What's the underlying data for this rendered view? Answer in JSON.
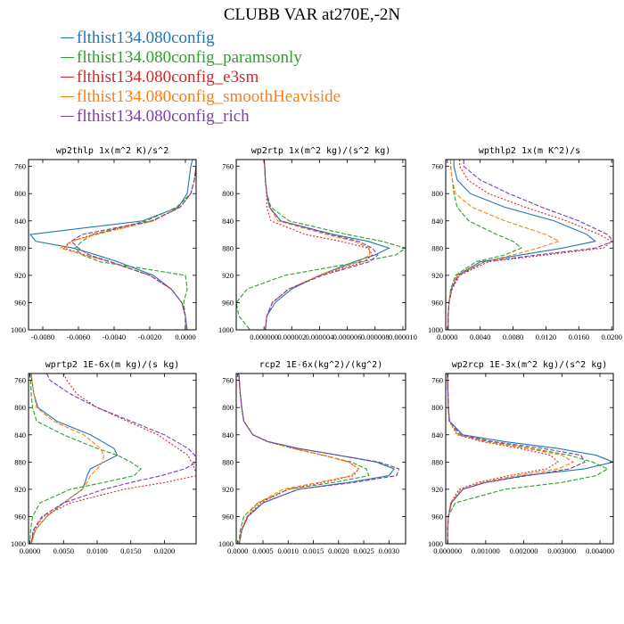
{
  "title": "CLUBB VAR at270E,-2N",
  "legend": [
    {
      "label": "flthist134.080config",
      "color": "#1f77b4"
    },
    {
      "label": "flthist134.080config_paramsonly",
      "color": "#2ca02c"
    },
    {
      "label": "flthist134.080config_e3sm",
      "color": "#d62728"
    },
    {
      "label": "flthist134.080config_smoothHeaviside",
      "color": "#ff7f0e"
    },
    {
      "label": "flthist134.080config_rich",
      "color": "#7f3fa6"
    }
  ],
  "chart_data": [
    {
      "type": "line",
      "title": "wp2thlp  1x(m^2 K)/s^2",
      "ylim": [
        1000,
        750
      ],
      "yticks": [
        "760",
        "800",
        "840",
        "880",
        "920",
        "960",
        "1000"
      ],
      "xlim": [
        -0.0088,
        0.0006
      ],
      "xticks": [
        "-0.0080",
        "-0.0060",
        "-0.0040",
        "-0.0020",
        "0.0000"
      ],
      "y": [
        750,
        760,
        780,
        800,
        820,
        840,
        860,
        870,
        880,
        890,
        900,
        920,
        940,
        960,
        980,
        1000
      ],
      "series": [
        {
          "name": "flthist134.080config",
          "color": "#1f77b4",
          "dash": "",
          "values": [
            0.0004,
            0.0003,
            0.0002,
            0.0001,
            -0.0004,
            -0.0024,
            -0.0087,
            -0.0084,
            -0.0063,
            -0.005,
            -0.0038,
            -0.0018,
            -0.0008,
            -0.0002,
            0.0,
            0.0001
          ]
        },
        {
          "name": "flthist134.080config_paramsonly",
          "color": "#2ca02c",
          "dash": "5,2",
          "values": [
            0.0006,
            0.0006,
            0.0005,
            0.0003,
            -0.0005,
            -0.0022,
            -0.0052,
            -0.0058,
            -0.0062,
            -0.0058,
            -0.0048,
            0.0,
            0.0001,
            -0.0001,
            0.0,
            0.0
          ]
        },
        {
          "name": "flthist134.080config_e3sm",
          "color": "#d62728",
          "dash": "2,2",
          "values": [
            0.0006,
            0.0006,
            0.0005,
            0.0003,
            -0.0003,
            -0.0018,
            -0.0052,
            -0.0064,
            -0.0068,
            -0.0056,
            -0.0042,
            -0.002,
            -0.0008,
            -0.0002,
            0.0,
            0.0
          ]
        },
        {
          "name": "flthist134.080config_smoothHeaviside",
          "color": "#ff7f0e",
          "dash": "5,2",
          "values": [
            0.0006,
            0.0006,
            0.0005,
            0.0003,
            -0.0003,
            -0.0018,
            -0.005,
            -0.0064,
            -0.007,
            -0.0057,
            -0.0043,
            -0.002,
            -0.0008,
            -0.0002,
            0.0,
            0.0
          ]
        },
        {
          "name": "flthist134.080config_rich",
          "color": "#7f3fa6",
          "dash": "5,2",
          "values": [
            0.0006,
            0.0006,
            0.0005,
            0.0003,
            -0.0003,
            -0.0019,
            -0.0058,
            -0.0064,
            -0.006,
            -0.0054,
            -0.0042,
            -0.002,
            -0.0008,
            -0.0002,
            0.0,
            0.0
          ]
        }
      ]
    },
    {
      "type": "line",
      "title": "wp2rtp  1x(m^2 kg)/(s^2 kg)",
      "ylim": [
        1000,
        750
      ],
      "yticks": [
        "760",
        "800",
        "840",
        "880",
        "920",
        "960",
        "1000"
      ],
      "xlim": [
        -2e-06,
        1.02e-05
      ],
      "xticks": [
        "0.000000",
        "0.000002",
        "0.000004",
        "0.000006",
        "0.000008",
        "0.000010"
      ],
      "y": [
        750,
        760,
        780,
        800,
        820,
        840,
        860,
        870,
        880,
        890,
        900,
        920,
        940,
        960,
        980,
        1000
      ],
      "series": [
        {
          "name": "flthist134.080config",
          "color": "#1f77b4",
          "dash": "",
          "values": [
            0,
            5e-08,
            1e-07,
            2e-07,
            4e-07,
            1.2e-06,
            5e-06,
            7.5e-06,
            9e-06,
            8e-06,
            6.5e-06,
            4e-06,
            2e-06,
            8e-07,
            2e-07,
            1e-07
          ]
        },
        {
          "name": "flthist134.080config_paramsonly",
          "color": "#2ca02c",
          "dash": "5,2",
          "values": [
            0,
            5e-08,
            1e-07,
            2e-07,
            5e-07,
            1.8e-06,
            6e-06,
            8.5e-06,
            1.02e-05,
            9.5e-06,
            7e-06,
            1.5e-06,
            -1.2e-06,
            -2e-06,
            -1.8e-06,
            -1e-06
          ]
        },
        {
          "name": "flthist134.080config_e3sm",
          "color": "#d62728",
          "dash": "2,2",
          "values": [
            0,
            5e-08,
            1e-07,
            2e-07,
            2e-07,
            5e-07,
            3e-06,
            5.5e-06,
            7.5e-06,
            7.8e-06,
            7.2e-06,
            4e-06,
            1.8e-06,
            6e-07,
            2e-07,
            1e-07
          ]
        },
        {
          "name": "flthist134.080config_smoothHeaviside",
          "color": "#ff7f0e",
          "dash": "5,2",
          "values": [
            0,
            5e-08,
            1e-07,
            2e-07,
            4e-07,
            1e-06,
            4.5e-06,
            6.5e-06,
            7.6e-06,
            7.6e-06,
            6.8e-06,
            4e-06,
            1.8e-06,
            6e-07,
            2e-07,
            1e-07
          ]
        },
        {
          "name": "flthist134.080config_rich",
          "color": "#7f3fa6",
          "dash": "5,2",
          "values": [
            0,
            5e-08,
            1e-07,
            2e-07,
            4e-07,
            1.2e-06,
            4.8e-06,
            6.8e-06,
            7.8e-06,
            8.2e-06,
            7.6e-06,
            4.2e-06,
            1.8e-06,
            6e-07,
            2e-07,
            1e-07
          ]
        }
      ]
    },
    {
      "type": "line",
      "title": "wpthlp2  1x(m K^2)/s",
      "ylim": [
        1000,
        750
      ],
      "yticks": [
        "760",
        "800",
        "840",
        "880",
        "920",
        "960",
        "1000"
      ],
      "xlim": [
        -0.0002,
        0.0202
      ],
      "xticks": [
        "0.0000",
        "0.0040",
        "0.0080",
        "0.0120",
        "0.0160",
        "0.0200"
      ],
      "y": [
        750,
        760,
        780,
        800,
        820,
        840,
        860,
        870,
        880,
        890,
        900,
        920,
        940,
        960,
        980,
        1000
      ],
      "series": [
        {
          "name": "flthist134.080config",
          "color": "#1f77b4",
          "dash": "",
          "values": [
            0.0008,
            0.0008,
            0.0012,
            0.0028,
            0.007,
            0.013,
            0.017,
            0.018,
            0.014,
            0.009,
            0.004,
            0.0012,
            0.0005,
            0.0002,
            0.0001,
            0.0001
          ]
        },
        {
          "name": "flthist134.080config_paramsonly",
          "color": "#2ca02c",
          "dash": "5,2",
          "values": [
            0.0004,
            0.0004,
            0.0006,
            0.0008,
            0.0012,
            0.0026,
            0.006,
            0.008,
            0.009,
            0.007,
            0.0035,
            0.001,
            0.0004,
            0.0002,
            0.0001,
            0.0001
          ]
        },
        {
          "name": "flthist134.080config_e3sm",
          "color": "#d62728",
          "dash": "2,2",
          "values": [
            0.0015,
            0.0015,
            0.0025,
            0.005,
            0.0095,
            0.0145,
            0.0185,
            0.02,
            0.019,
            0.012,
            0.005,
            0.0015,
            0.0006,
            0.0002,
            0.0001,
            0.0001
          ]
        },
        {
          "name": "flthist134.080config_smoothHeaviside",
          "color": "#ff7f0e",
          "dash": "5,2",
          "values": [
            0.0004,
            0.0004,
            0.0006,
            0.001,
            0.003,
            0.007,
            0.012,
            0.0136,
            0.011,
            0.008,
            0.0045,
            0.0012,
            0.0005,
            0.0002,
            0.0001,
            0.0001
          ]
        },
        {
          "name": "flthist134.080config_rich",
          "color": "#7f3fa6",
          "dash": "5,2",
          "values": [
            0.002,
            0.002,
            0.004,
            0.0075,
            0.0115,
            0.016,
            0.0195,
            0.0202,
            0.018,
            0.011,
            0.0045,
            0.0014,
            0.0005,
            0.0002,
            0.0001,
            0.0001
          ]
        }
      ]
    },
    {
      "type": "line",
      "title": "wprtp2  1E-6x(m kg)/(s kg)",
      "ylim": [
        1000,
        750
      ],
      "yticks": [
        "760",
        "800",
        "840",
        "880",
        "920",
        "960",
        "1000"
      ],
      "xlim": [
        -0.0002,
        0.0247
      ],
      "xticks": [
        "0.0000",
        "0.0050",
        "0.0100",
        "0.0150",
        "0.0200"
      ],
      "y": [
        750,
        760,
        780,
        800,
        820,
        840,
        860,
        870,
        880,
        890,
        900,
        910,
        920,
        940,
        960,
        980,
        1000
      ],
      "series": [
        {
          "name": "flthist134.080config",
          "color": "#1f77b4",
          "dash": "",
          "values": [
            0.0002,
            0.0003,
            0.0006,
            0.0012,
            0.004,
            0.009,
            0.0125,
            0.013,
            0.011,
            0.009,
            0.0085,
            0.0082,
            0.0078,
            0.005,
            0.0025,
            0.0008,
            0.0002
          ]
        },
        {
          "name": "flthist134.080config_paramsonly",
          "color": "#2ca02c",
          "dash": "5,2",
          "values": [
            0.0,
            0.0001,
            0.0002,
            0.0004,
            0.001,
            0.005,
            0.01,
            0.013,
            0.015,
            0.0165,
            0.0155,
            0.011,
            0.006,
            0.0015,
            0.0004,
            0.0001,
            0.0
          ]
        },
        {
          "name": "flthist134.080config_e3sm",
          "color": "#d62728",
          "dash": "2,2",
          "values": [
            0.005,
            0.0055,
            0.007,
            0.01,
            0.0145,
            0.019,
            0.022,
            0.0235,
            0.024,
            0.0245,
            0.0248,
            0.02,
            0.014,
            0.006,
            0.002,
            0.0006,
            0.0002
          ]
        },
        {
          "name": "flthist134.080config_smoothHeaviside",
          "color": "#ff7f0e",
          "dash": "5,2",
          "values": [
            0.0002,
            0.0003,
            0.0006,
            0.001,
            0.0035,
            0.008,
            0.0105,
            0.011,
            0.0108,
            0.01,
            0.009,
            0.0085,
            0.0078,
            0.005,
            0.0025,
            0.0008,
            0.0002
          ]
        },
        {
          "name": "flthist134.080config_rich",
          "color": "#7f3fa6",
          "dash": "5,2",
          "values": [
            0.0025,
            0.003,
            0.006,
            0.01,
            0.015,
            0.02,
            0.0235,
            0.0245,
            0.0248,
            0.023,
            0.0195,
            0.015,
            0.011,
            0.005,
            0.0018,
            0.0005,
            0.0002
          ]
        }
      ]
    },
    {
      "type": "line",
      "title": "rcp2  1E-6x(kg^2)/(kg^2)",
      "ylim": [
        1000,
        750
      ],
      "yticks": [
        "760",
        "800",
        "840",
        "880",
        "920",
        "960",
        "1000"
      ],
      "xlim": [
        -3e-05,
        0.00333
      ],
      "xticks": [
        "0.0000",
        "0.0005",
        "0.0010",
        "0.0015",
        "0.0020",
        "0.0025",
        "0.0030"
      ],
      "y": [
        750,
        760,
        780,
        800,
        820,
        840,
        850,
        860,
        870,
        880,
        890,
        900,
        910,
        920,
        940,
        960,
        980,
        1000
      ],
      "series": [
        {
          "name": "flthist134.080config",
          "color": "#1f77b4",
          "dash": "",
          "values": [
            2e-05,
            3e-05,
            5e-05,
            8e-05,
            0.00012,
            0.0003,
            0.0006,
            0.0012,
            0.002,
            0.00275,
            0.0031,
            0.003,
            0.0022,
            0.0012,
            0.0005,
            0.0002,
            8e-05,
            3e-05
          ]
        },
        {
          "name": "flthist134.080config_paramsonly",
          "color": "#2ca02c",
          "dash": "5,2",
          "values": [
            2e-05,
            3e-05,
            5e-05,
            8e-05,
            0.00012,
            0.0003,
            0.0006,
            0.0011,
            0.0017,
            0.00225,
            0.00255,
            0.0026,
            0.0019,
            0.001,
            0.0004,
            0.00012,
            5e-05,
            2e-05
          ]
        },
        {
          "name": "flthist134.080config_e3sm",
          "color": "#d62728",
          "dash": "2,2",
          "values": [
            2e-05,
            3e-05,
            5e-05,
            8e-05,
            0.00012,
            0.0003,
            0.00058,
            0.0011,
            0.0017,
            0.0022,
            0.0024,
            0.0023,
            0.0017,
            0.001,
            0.00045,
            0.0002,
            8e-05,
            3e-05
          ]
        },
        {
          "name": "flthist134.080config_smoothHeaviside",
          "color": "#ff7f0e",
          "dash": "5,2",
          "values": [
            2e-05,
            3e-05,
            5e-05,
            8e-05,
            0.00012,
            0.0003,
            0.0006,
            0.0011,
            0.0017,
            0.0022,
            0.0024,
            0.00225,
            0.0016,
            0.0009,
            0.0004,
            0.00018,
            7e-05,
            3e-05
          ]
        },
        {
          "name": "flthist134.080config_rich",
          "color": "#7f3fa6",
          "dash": "5,2",
          "values": [
            2e-05,
            3e-05,
            5e-05,
            8e-05,
            0.00012,
            0.0003,
            0.0006,
            0.0012,
            0.002,
            0.0028,
            0.0032,
            0.00315,
            0.0023,
            0.0012,
            0.0005,
            0.0002,
            8e-05,
            3e-05
          ]
        }
      ]
    },
    {
      "type": "line",
      "title": "wp2rcp  1E-3x(m^2 kg)/(s^2 kg)",
      "ylim": [
        1000,
        750
      ],
      "yticks": [
        "760",
        "800",
        "840",
        "880",
        "920",
        "960",
        "1000"
      ],
      "xlim": [
        -5e-05,
        0.00435
      ],
      "xticks": [
        "0.000000",
        "0.001000",
        "0.002000",
        "0.003000",
        "0.004000"
      ],
      "y": [
        750,
        760,
        780,
        800,
        820,
        840,
        850,
        860,
        870,
        880,
        890,
        900,
        910,
        920,
        940,
        960,
        980,
        1000
      ],
      "series": [
        {
          "name": "flthist134.080config",
          "color": "#1f77b4",
          "dash": "",
          "values": [
            0.0,
            0.0,
            1e-05,
            2e-05,
            5e-05,
            0.0004,
            0.0015,
            0.0029,
            0.0039,
            0.00435,
            0.0036,
            0.002,
            0.001,
            0.0004,
            0.0001,
            2e-05,
            0.0,
            0.0
          ]
        },
        {
          "name": "flthist134.080config_paramsonly",
          "color": "#2ca02c",
          "dash": "5,2",
          "values": [
            0.0,
            0.0,
            1e-05,
            2e-05,
            4e-05,
            0.0003,
            0.0011,
            0.0022,
            0.0032,
            0.0038,
            0.0042,
            0.0039,
            0.003,
            0.0015,
            0.0002,
            1e-05,
            0.0,
            0.0
          ]
        },
        {
          "name": "flthist134.080config_e3sm",
          "color": "#d62728",
          "dash": "2,2",
          "values": [
            0.0,
            0.0,
            1e-05,
            2e-05,
            4e-05,
            0.00025,
            0.0009,
            0.0019,
            0.0027,
            0.0029,
            0.0026,
            0.0016,
            0.0008,
            0.0003,
            8e-05,
            2e-05,
            0.0,
            0.0
          ]
        },
        {
          "name": "flthist134.080config_smoothHeaviside",
          "color": "#ff7f0e",
          "dash": "5,2",
          "values": [
            0.0,
            0.0,
            1e-05,
            2e-05,
            4e-05,
            0.00028,
            0.001,
            0.0021,
            0.003,
            0.0033,
            0.0029,
            0.0018,
            0.0009,
            0.00035,
            8e-05,
            2e-05,
            0.0,
            0.0
          ]
        },
        {
          "name": "flthist134.080config_rich",
          "color": "#7f3fa6",
          "dash": "5,2",
          "values": [
            0.0,
            0.0,
            1e-05,
            2e-05,
            5e-05,
            0.00035,
            0.0012,
            0.0025,
            0.0035,
            0.0036,
            0.0032,
            0.0021,
            0.001,
            0.0004,
            0.0001,
            2e-05,
            0.0,
            0.0
          ]
        }
      ]
    }
  ]
}
